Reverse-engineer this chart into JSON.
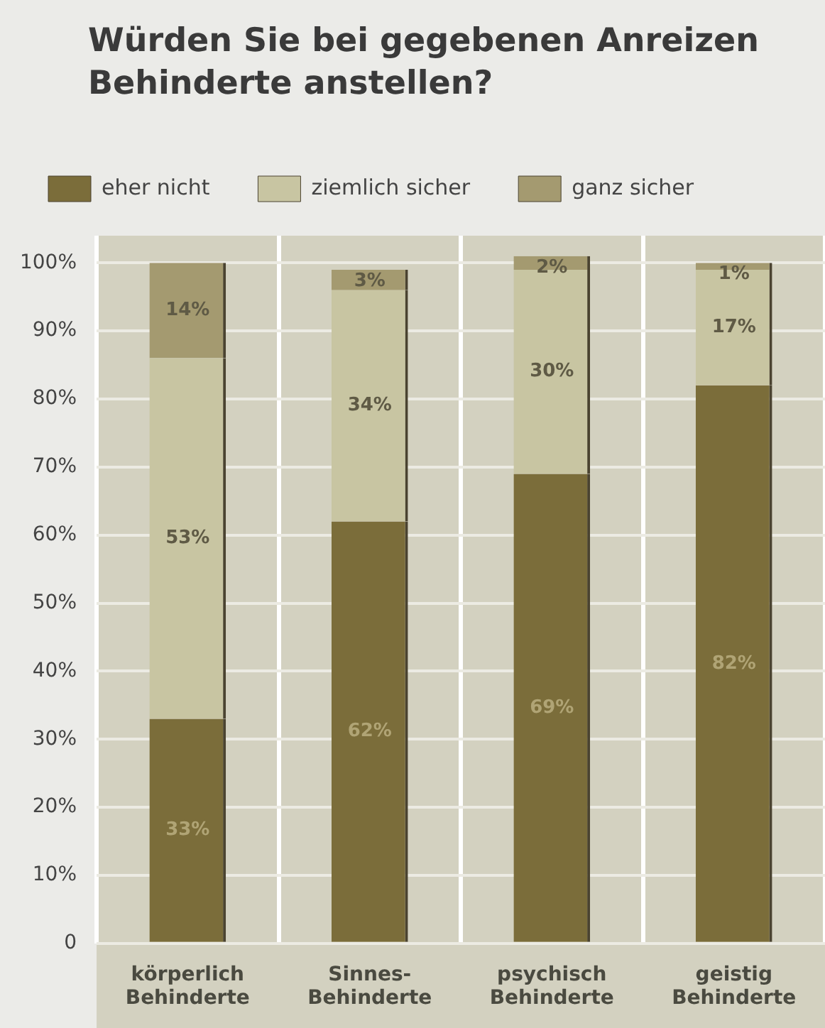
{
  "chart_data": {
    "type": "bar",
    "title": "Würden Sie bei gegebenen Anreizen Behinderte anstellen?",
    "categories": [
      "körperlich Behinderte",
      "Sinnes-Behinderte",
      "psychisch Behinderte",
      "geistig Behinderte"
    ],
    "series": [
      {
        "name": "eher nicht",
        "color": "#7b6d3a",
        "values": [
          33,
          62,
          69,
          82
        ],
        "value_labels": [
          "33%",
          "62%",
          "69%",
          "82%"
        ]
      },
      {
        "name": "ziemlich sicher",
        "color": "#c8c5a2",
        "values": [
          53,
          34,
          30,
          17
        ],
        "value_labels": [
          "53%",
          "34%",
          "30%",
          "17%"
        ]
      },
      {
        "name": "ganz sicher",
        "color": "#a49a70",
        "values": [
          14,
          3,
          2,
          1
        ],
        "value_labels": [
          "14%",
          "3%",
          "2%",
          "1%"
        ]
      }
    ],
    "stacked": true,
    "ylim": [
      0,
      104
    ],
    "yticks": [
      0,
      {
        "value": 10,
        "label": "10%"
      },
      {
        "value": 20,
        "label": "20%"
      },
      {
        "value": 30,
        "label": "30%"
      },
      {
        "value": 40,
        "label": "40%"
      },
      {
        "value": 50,
        "label": "50%"
      },
      {
        "value": 60,
        "label": "60%"
      },
      {
        "value": 70,
        "label": "70%"
      },
      {
        "value": 80,
        "label": "80%"
      },
      {
        "value": 90,
        "label": "90%"
      },
      {
        "value": 100,
        "label": "100%"
      }
    ],
    "grid": true,
    "legend": "top"
  }
}
